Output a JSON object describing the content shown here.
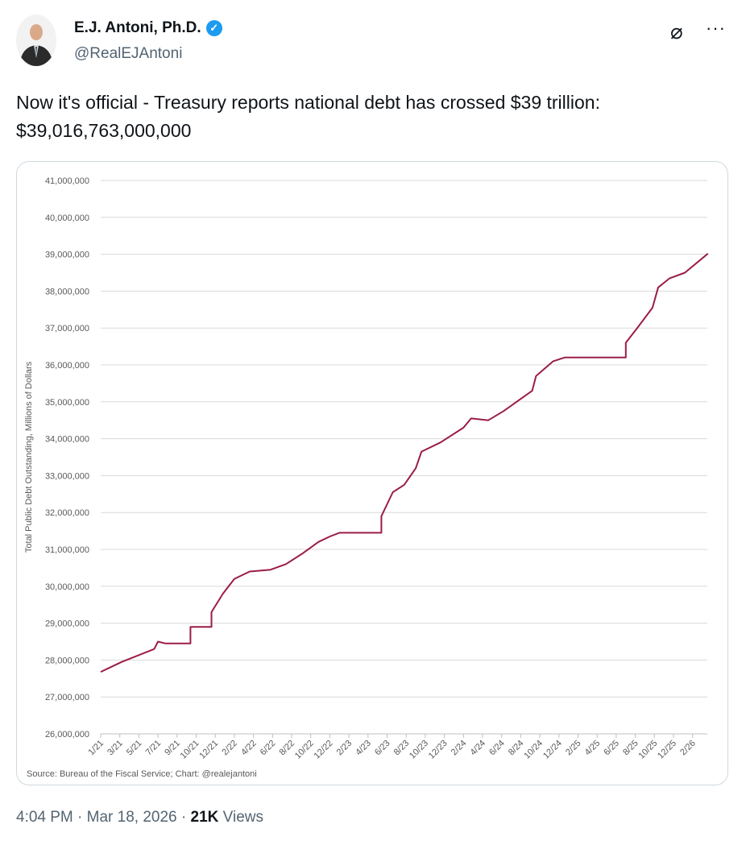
{
  "author": {
    "name": "E.J. Antoni, Ph.D.",
    "handle": "@RealEJAntoni",
    "verified": true
  },
  "tweet_text": "Now it's official - Treasury reports national debt has crossed $39 trillion: $39,016,763,000,000",
  "footer": {
    "time": "4:04 PM",
    "dot": "·",
    "date": "Mar 18, 2026",
    "views_count": "21K",
    "views_label": "Views"
  },
  "icons": [
    "grok-icon",
    "more-icon",
    "verified-badge-icon"
  ],
  "chart_data": {
    "type": "line",
    "title": "",
    "ylabel": "Total Public Debt Outstanding, Millions of Dollars",
    "xlabel": "",
    "source": "Source: Bureau of the Fiscal Service; Chart: @realejantoni",
    "ylim": [
      26000000,
      41000000
    ],
    "yticks": [
      "26,000,000",
      "27,000,000",
      "28,000,000",
      "29,000,000",
      "30,000,000",
      "31,000,000",
      "32,000,000",
      "33,000,000",
      "34,000,000",
      "35,000,000",
      "36,000,000",
      "37,000,000",
      "38,000,000",
      "39,000,000",
      "40,000,000",
      "41,000,000"
    ],
    "xticks": [
      "1/21",
      "3/21",
      "5/21",
      "7/21",
      "9/21",
      "10/21",
      "12/21",
      "2/22",
      "4/22",
      "6/22",
      "8/22",
      "10/22",
      "12/22",
      "2/23",
      "4/23",
      "6/23",
      "8/23",
      "10/23",
      "12/23",
      "2/24",
      "4/24",
      "6/24",
      "8/24",
      "10/24",
      "12/24",
      "2/25",
      "4/25",
      "6/25",
      "8/25",
      "10/25",
      "12/25",
      "2/26"
    ],
    "grid": true,
    "color": "#9b1c4a",
    "series": [
      {
        "name": "Total Public Debt Outstanding",
        "x": [
          0,
          1.1,
          2.8,
          3,
          3.4,
          4.7,
          4.7,
          5.8,
          5.8,
          6.4,
          7,
          7.8,
          8.9,
          9.7,
          10.6,
          11.4,
          12,
          12.5,
          14.7,
          14.7,
          15.3,
          15.9,
          16.5,
          16.8,
          17.8,
          19,
          19.4,
          20.3,
          21.1,
          22.6,
          22.8,
          23.7,
          24.3,
          27.5,
          27.5,
          28.1,
          28.9,
          29.2,
          29.8,
          30.6,
          31.8
        ],
        "y": [
          27680000,
          27950000,
          28300000,
          28500000,
          28450000,
          28450000,
          28900000,
          28900000,
          29300000,
          29800000,
          30200000,
          30400000,
          30450000,
          30600000,
          30900000,
          31200000,
          31350000,
          31450000,
          31450000,
          31900000,
          32550000,
          32750000,
          33200000,
          33650000,
          33900000,
          34300000,
          34550000,
          34500000,
          34750000,
          35300000,
          35700000,
          36100000,
          36200000,
          36200000,
          36600000,
          37000000,
          37550000,
          38100000,
          38350000,
          38500000,
          39016763
        ]
      }
    ]
  }
}
